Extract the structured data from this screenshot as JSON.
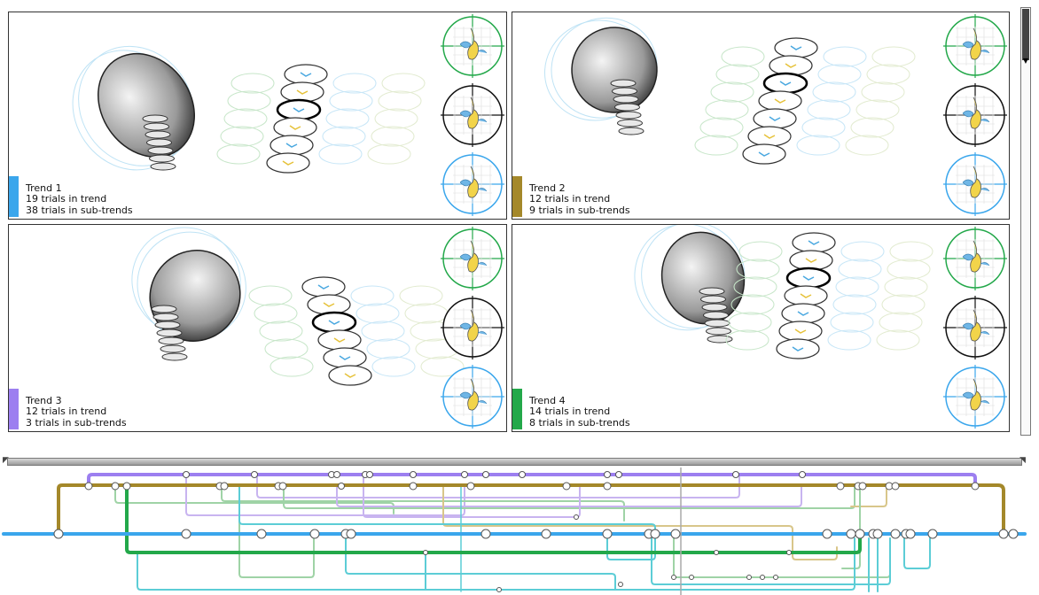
{
  "colors": {
    "trend1": "#3aa6ec",
    "trend2": "#a4882a",
    "trend3": "#9c7ff0",
    "trend4": "#23a84a",
    "sub_teal": "#5ccdd6",
    "sub_green": "#9fd3a6",
    "sub_purple": "#c8b4f0",
    "sub_gold": "#d8c68a"
  },
  "trends": [
    {
      "id": 1,
      "title": "Trend 1",
      "trials": "19 trials in trend",
      "subtrials": "38 trials in sub-trends",
      "color": "#3aa6ec"
    },
    {
      "id": 2,
      "title": "Trend 2",
      "trials": "12 trials in trend",
      "subtrials": "9 trials in sub-trends",
      "color": "#a4882a"
    },
    {
      "id": 3,
      "title": "Trend 3",
      "trials": "12 trials in trend",
      "subtrials": "3 trials in sub-trends",
      "color": "#9c7ff0"
    },
    {
      "id": 4,
      "title": "Trend 4",
      "trials": "14 trials in trend",
      "subtrials": "8 trials in sub-trends",
      "color": "#23a84a"
    }
  ],
  "views": [
    {
      "name": "top-view",
      "color": "#23a84a"
    },
    {
      "name": "side-view",
      "color": "#111111"
    },
    {
      "name": "front-view",
      "color": "#3aa6ec"
    }
  ],
  "icons": {
    "scroll_down": "▼",
    "h_left": "◤",
    "h_right": "◥"
  }
}
